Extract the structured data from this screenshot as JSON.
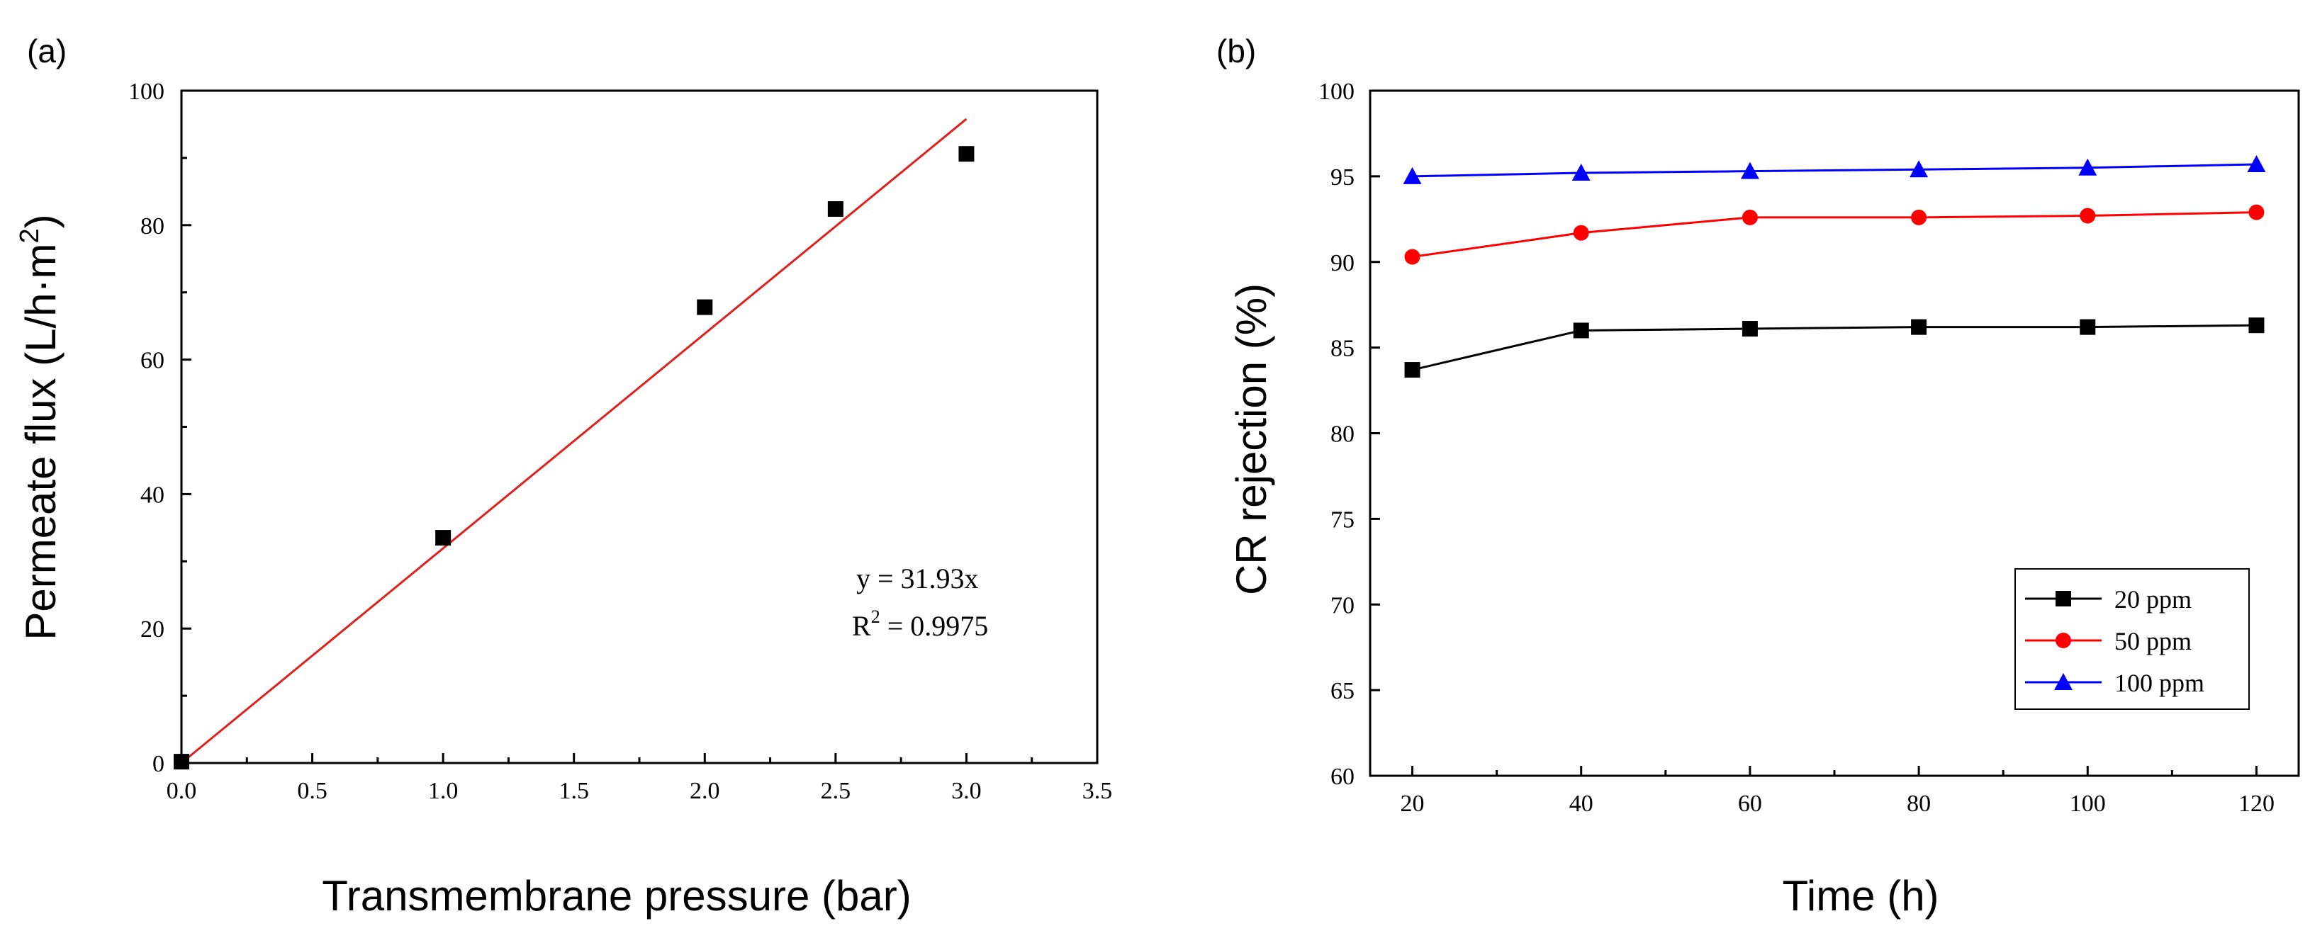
{
  "chart_data": [
    {
      "type": "scatter",
      "panel_label": "(a)",
      "xlabel": "Transmembrane pressure (bar)",
      "ylabel_main": "Permeate flux (L/h·m",
      "ylabel_sup": "2",
      "ylabel_close": ")",
      "xlim": [
        0,
        3.5
      ],
      "ylim": [
        0,
        100
      ],
      "xticks": [
        "0.0",
        "0.5",
        "1.0",
        "1.5",
        "2.0",
        "2.5",
        "3.0",
        "3.5"
      ],
      "xtick_values": [
        0,
        0.5,
        1.0,
        1.5,
        2.0,
        2.5,
        3.0,
        3.5
      ],
      "yticks": [
        "0",
        "20",
        "40",
        "60",
        "80",
        "100"
      ],
      "ytick_values": [
        0,
        20,
        40,
        60,
        80,
        100
      ],
      "series": [
        {
          "marker": "square",
          "color": "#000000",
          "x": [
            0.0,
            1.0,
            2.0,
            2.5,
            3.0
          ],
          "y": [
            0.2,
            33.5,
            67.8,
            82.4,
            90.6
          ]
        }
      ],
      "fit": {
        "color": "#e0201b",
        "slope": 31.93,
        "x": [
          0.0,
          3.0
        ]
      },
      "annotation": {
        "line1": "y = 31.93x",
        "line2_pre": "R",
        "line2_sup": "2",
        "line2_post": " = 0.9975"
      },
      "grid": false
    },
    {
      "type": "line",
      "panel_label": "(b)",
      "xlabel": "Time (h)",
      "ylabel": "CR rejection (%)",
      "xlim": [
        15,
        125
      ],
      "ylim": [
        60,
        100
      ],
      "x": [
        20,
        40,
        60,
        80,
        100,
        120
      ],
      "xticks": [
        "20",
        "40",
        "60",
        "80",
        "100",
        "120"
      ],
      "yticks": [
        "60",
        "65",
        "70",
        "75",
        "80",
        "85",
        "90",
        "95",
        "100"
      ],
      "ytick_values": [
        60,
        65,
        70,
        75,
        80,
        85,
        90,
        95,
        100
      ],
      "series": [
        {
          "name": "20 ppm",
          "color": "#000000",
          "marker": "square",
          "values": [
            83.7,
            86.0,
            86.1,
            86.2,
            86.2,
            86.3
          ]
        },
        {
          "name": "50 ppm",
          "color": "#ff0000",
          "marker": "circle",
          "values": [
            90.3,
            91.7,
            92.6,
            92.6,
            92.7,
            92.9
          ]
        },
        {
          "name": "100 ppm",
          "color": "#0000ff",
          "marker": "triangle",
          "values": [
            95.0,
            95.2,
            95.3,
            95.4,
            95.5,
            95.7
          ]
        }
      ],
      "legend": {
        "position": "bottom-right"
      },
      "grid": false
    }
  ]
}
